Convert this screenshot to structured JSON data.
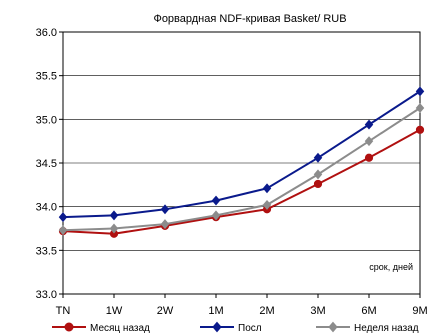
{
  "chart_data": {
    "type": "line",
    "title": "Форвардная NDF-кривая Basket/ RUB",
    "annotation": "срок, дней",
    "categories": [
      "TN",
      "1W",
      "2W",
      "1M",
      "2M",
      "3M",
      "6M",
      "9M"
    ],
    "ylim": [
      33.0,
      36.0
    ],
    "yticks": [
      "33.0",
      "33.5",
      "34.0",
      "34.5",
      "35.0",
      "35.5",
      "36.0"
    ],
    "grid": true,
    "legend_position": "bottom",
    "series": [
      {
        "name": "Месяц назад",
        "color": "#b01010",
        "marker": "circle",
        "values": [
          33.72,
          33.69,
          33.78,
          33.88,
          33.97,
          34.26,
          34.56,
          34.88
        ]
      },
      {
        "name": "Посл",
        "color": "#0a1a8c",
        "marker": "diamond",
        "values": [
          33.88,
          33.9,
          33.97,
          34.07,
          34.21,
          34.56,
          34.94,
          35.32
        ]
      },
      {
        "name": "Неделя назад",
        "color": "#8c8c8c",
        "marker": "diamond",
        "values": [
          33.73,
          33.75,
          33.8,
          33.9,
          34.02,
          34.37,
          34.75,
          35.13
        ]
      }
    ]
  }
}
